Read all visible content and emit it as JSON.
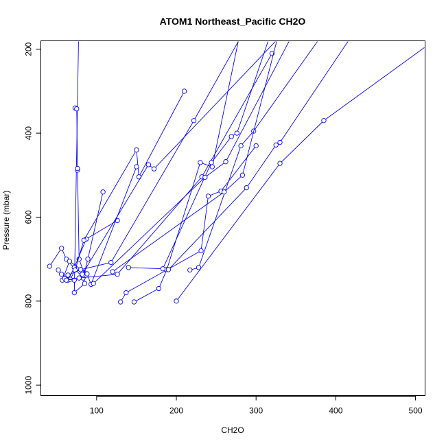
{
  "chart_data": {
    "type": "line",
    "title": "ATOM1 Northeast_Pacific CH2O",
    "xlabel": "CH2O",
    "ylabel": "Pressure (mbar)",
    "xlim": [
      30,
      512
    ],
    "ylim": [
      1025,
      180
    ],
    "y_reversed": true,
    "x_ticks": [
      "100",
      "200",
      "300",
      "400",
      "500"
    ],
    "y_ticks": [
      "200",
      "400",
      "600",
      "800",
      "1000"
    ],
    "grid": false,
    "legend": "none",
    "color": "#0000ff",
    "series": [
      {
        "values": [
          [
            73,
            340
          ],
          [
            75,
            342
          ],
          [
            76,
            488
          ],
          [
            76,
            484
          ],
          [
            78,
            700
          ],
          [
            84,
            732
          ],
          [
            85,
            758
          ],
          [
            72,
            780
          ],
          [
            78,
            100
          ]
        ]
      },
      {
        "values": [
          [
            41,
            717
          ],
          [
            56,
            674
          ],
          [
            62,
            700
          ],
          [
            83,
            745
          ],
          [
            89,
            700
          ],
          [
            108,
            540
          ]
        ]
      },
      {
        "values": [
          [
            52,
            726
          ],
          [
            64,
            750
          ],
          [
            72,
            720
          ],
          [
            87,
            652
          ],
          [
            126,
            608
          ]
        ]
      },
      {
        "values": [
          [
            56,
            736
          ],
          [
            67,
            748
          ],
          [
            73,
            726
          ],
          [
            84,
            655
          ],
          [
            150,
            440
          ],
          [
            153,
            504
          ],
          [
            210,
            300
          ]
        ]
      },
      {
        "values": [
          [
            57,
            750
          ],
          [
            66,
            705
          ],
          [
            88,
            735
          ],
          [
            93,
            760
          ],
          [
            150,
            480
          ]
        ]
      },
      {
        "values": [
          [
            60,
            746
          ],
          [
            72,
            750
          ],
          [
            82,
            736
          ],
          [
            165,
            475
          ],
          [
            172,
            485
          ],
          [
            340,
            150
          ]
        ]
      },
      {
        "values": [
          [
            64,
            738
          ],
          [
            80,
            725
          ],
          [
            118,
            708
          ],
          [
            222,
            370
          ],
          [
            290,
            140
          ]
        ]
      },
      {
        "values": [
          [
            62,
            750
          ],
          [
            78,
            745
          ],
          [
            126,
            736
          ],
          [
            232,
            504
          ],
          [
            320,
            210
          ]
        ]
      },
      {
        "values": [
          [
            130,
            802
          ],
          [
            137,
            780
          ],
          [
            231,
            680
          ],
          [
            240,
            550
          ],
          [
            256,
            538
          ],
          [
            300,
            430
          ]
        ]
      },
      {
        "values": [
          [
            147,
            802
          ],
          [
            178,
            770
          ],
          [
            188,
            725
          ],
          [
            230,
            470
          ],
          [
            245,
            480
          ],
          [
            280,
            160
          ]
        ]
      },
      {
        "values": [
          [
            140,
            720
          ],
          [
            183,
            723
          ],
          [
            244,
            470
          ],
          [
            269,
            408
          ],
          [
            276,
            400
          ],
          [
            325,
            125
          ]
        ]
      },
      {
        "values": [
          [
            217,
            726
          ],
          [
            228,
            720
          ],
          [
            281,
            430
          ],
          [
            297,
            395
          ],
          [
            400,
            120
          ]
        ]
      },
      {
        "values": [
          [
            190,
            725
          ],
          [
            288,
            530
          ],
          [
            325,
            428
          ],
          [
            330,
            422
          ],
          [
            430,
            140
          ]
        ]
      },
      {
        "values": [
          [
            200,
            800
          ],
          [
            330,
            472
          ],
          [
            385,
            370
          ],
          [
            530,
            170
          ]
        ]
      },
      {
        "values": [
          [
            96,
            758
          ],
          [
            236,
            505
          ],
          [
            262,
            468
          ],
          [
            350,
            150
          ]
        ]
      },
      {
        "values": [
          [
            120,
            730
          ],
          [
            260,
            540
          ],
          [
            283,
            500
          ],
          [
            330,
            150
          ]
        ]
      }
    ]
  }
}
